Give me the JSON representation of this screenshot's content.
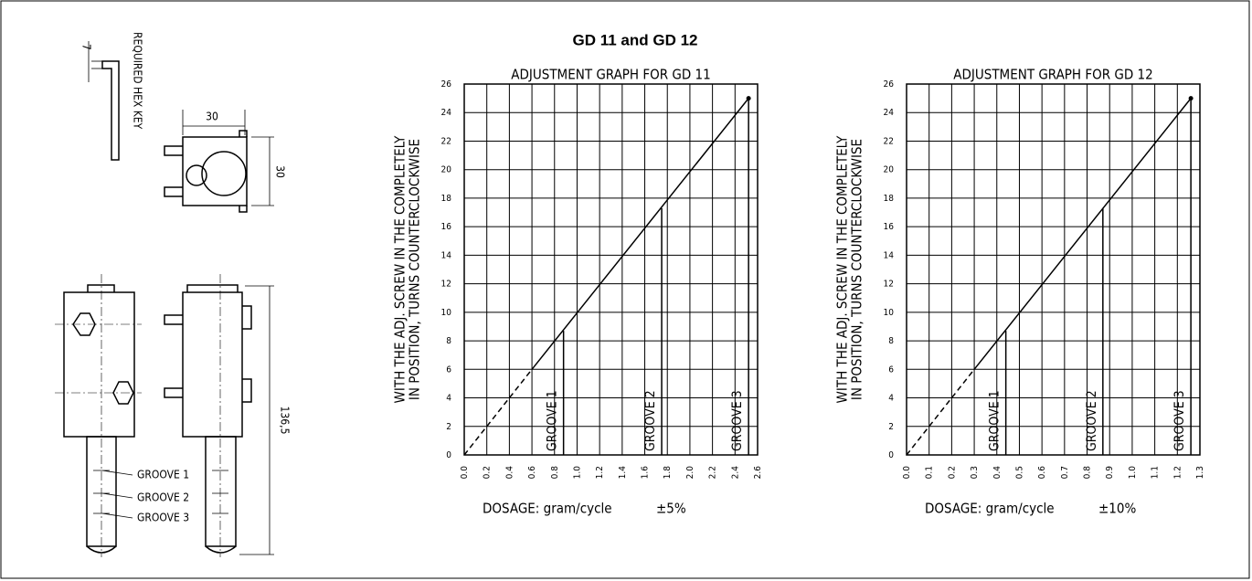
{
  "title": "GD 11 and GD 12",
  "drawing": {
    "hex_size": "7",
    "hex_key": "REQUIRED HEX KEY",
    "width": "30",
    "depth": "30",
    "height": "136,5",
    "grooves": [
      "GROOVE 1",
      "GROOVE 2",
      "GROOVE 3"
    ]
  },
  "chart_data": [
    {
      "type": "line",
      "title": "ADJUSTMENT GRAPH FOR GD 11",
      "ylabel": [
        "WITH THE ADJ. SCREW IN THE COMPLETELY",
        "IN POSITION, TURNS COUNTERCLOCKWISE"
      ],
      "xlabel": "DOSAGE: gram/cycle",
      "xlabel_note": "±5%",
      "xlim": [
        0,
        2.6
      ],
      "xticks": [
        {
          "value": 0,
          "label": "0.0"
        },
        0.2,
        0.4,
        0.6,
        0.8,
        {
          "value": 1,
          "label": "1.0"
        },
        1.2,
        1.4,
        1.6,
        1.8,
        {
          "value": 2,
          "label": "2.0"
        },
        2.2,
        2.4,
        2.6
      ],
      "ylim": [
        0,
        26
      ],
      "yticks": [
        0,
        2,
        4,
        6,
        8,
        10,
        12,
        14,
        16,
        18,
        20,
        22,
        24,
        26
      ],
      "grid": true,
      "series": [
        {
          "style": "dashed",
          "color": "#000000",
          "x": [
            0,
            0.6
          ],
          "values": [
            0,
            6
          ]
        },
        {
          "style": "solid",
          "color": "#000000",
          "x": [
            0.6,
            2.52
          ],
          "values": [
            6,
            25
          ]
        }
      ],
      "annotations": [
        {
          "label": "GROOVE 1",
          "x": 0.88,
          "y": 8.7
        },
        {
          "label": "GROOVE 2",
          "x": 1.75,
          "y": 17.3
        },
        {
          "label": "GROOVE 3",
          "x": 2.52,
          "y": 25
        }
      ]
    },
    {
      "type": "line",
      "title": "ADJUSTMENT GRAPH FOR GD 12",
      "ylabel": [
        "WITH THE ADJ. SCREW IN THE COMPLETELY",
        "IN POSITION, TURNS COUNTERCLOCKWISE"
      ],
      "xlabel": "DOSAGE: gram/cycle",
      "xlabel_note": "±10%",
      "xlim": [
        0,
        1.3
      ],
      "xticks": [
        {
          "value": 0,
          "label": "0.0"
        },
        0.1,
        0.2,
        0.3,
        0.4,
        0.5,
        0.6,
        0.7,
        0.8,
        0.9,
        {
          "value": 1,
          "label": "1.0"
        },
        1.1,
        1.2,
        1.3
      ],
      "ylim": [
        0,
        26
      ],
      "yticks": [
        0,
        2,
        4,
        6,
        8,
        10,
        12,
        14,
        16,
        18,
        20,
        22,
        24,
        26
      ],
      "grid": true,
      "series": [
        {
          "style": "dashed",
          "color": "#000000",
          "x": [
            0,
            0.3
          ],
          "values": [
            0,
            6
          ]
        },
        {
          "style": "solid",
          "color": "#000000",
          "x": [
            0.3,
            1.26
          ],
          "values": [
            6,
            25
          ]
        }
      ],
      "annotations": [
        {
          "label": "GROOVE 1",
          "x": 0.44,
          "y": 8.7
        },
        {
          "label": "GROOVE 2",
          "x": 0.87,
          "y": 17.3
        },
        {
          "label": "GROOVE 3",
          "x": 1.26,
          "y": 25
        }
      ]
    }
  ]
}
